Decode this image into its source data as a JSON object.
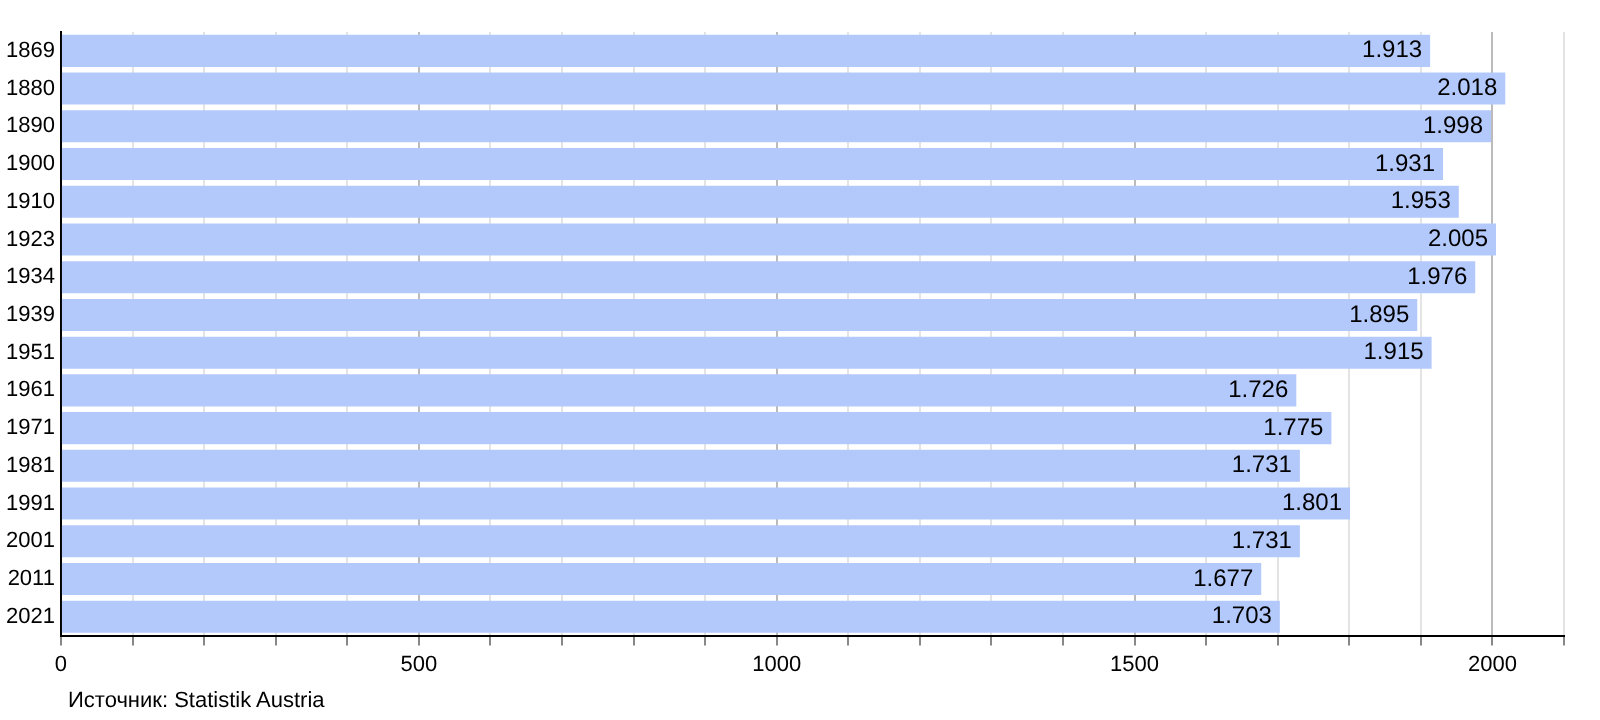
{
  "chart_data": {
    "type": "bar",
    "orientation": "horizontal",
    "categories": [
      "1869",
      "1880",
      "1890",
      "1900",
      "1910",
      "1923",
      "1934",
      "1939",
      "1951",
      "1961",
      "1971",
      "1981",
      "1991",
      "2001",
      "2011",
      "2021"
    ],
    "values": [
      1913,
      2018,
      1998,
      1931,
      1953,
      2005,
      1976,
      1895,
      1915,
      1726,
      1775,
      1731,
      1801,
      1731,
      1677,
      1703
    ],
    "value_labels": [
      "1.913",
      "2.018",
      "1.998",
      "1.931",
      "1.953",
      "2.005",
      "1.976",
      "1.895",
      "1.915",
      "1.726",
      "1.775",
      "1.731",
      "1.801",
      "1.731",
      "1.677",
      "1.703"
    ],
    "color": "#b3c9fb",
    "xlim": [
      0,
      2100
    ],
    "xticks": [
      0,
      {
        "value": 100,
        "label": null
      },
      {
        "value": 200,
        "label": null
      },
      {
        "value": 300,
        "label": null
      },
      {
        "value": 400,
        "label": null
      },
      500,
      {
        "value": 600,
        "label": null
      },
      {
        "value": 700,
        "label": null
      },
      {
        "value": 800,
        "label": null
      },
      {
        "value": 900,
        "label": null
      },
      1000,
      {
        "value": 1100,
        "label": null
      },
      {
        "value": 1200,
        "label": null
      },
      {
        "value": 1300,
        "label": null
      },
      {
        "value": 1400,
        "label": null
      },
      1500,
      {
        "value": 1600,
        "label": null
      },
      {
        "value": 1700,
        "label": null
      },
      {
        "value": 1800,
        "label": null
      },
      {
        "value": 1900,
        "label": null
      },
      2000,
      {
        "value": 2100,
        "label": null
      }
    ],
    "grid": "x",
    "annotations": [
      "Источник: Statistik Austria"
    ]
  }
}
